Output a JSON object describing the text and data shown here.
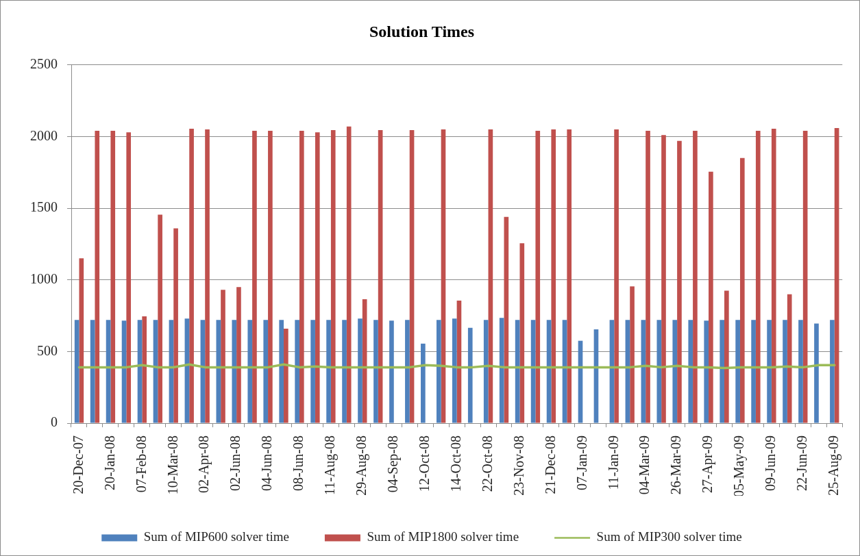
{
  "chart_data": {
    "type": "bar",
    "title": "Solution Times",
    "categories": [
      "20-Dec-07",
      null,
      "20-Jan-08",
      null,
      "07-Feb-08",
      null,
      "10-Mar-08",
      null,
      "02-Apr-08",
      null,
      "02-Jun-08",
      null,
      "04-Jun-08",
      null,
      "08-Jun-08",
      null,
      "11-Aug-08",
      null,
      "29-Aug-08",
      null,
      "04-Sep-08",
      null,
      "12-Oct-08",
      null,
      "14-Oct-08",
      null,
      "22-Oct-08",
      null,
      "23-Nov-08",
      null,
      "21-Dec-08",
      null,
      "07-Jan-09",
      null,
      "11-Jan-09",
      null,
      "04-Mar-09",
      null,
      "26-Mar-09",
      null,
      "27-Apr-09",
      null,
      "05-May-09",
      null,
      "09-Jun-09",
      null,
      "22-Jun-09",
      null,
      "25-Aug-09"
    ],
    "series": [
      {
        "name": "Sum of MIP600 solver time",
        "color": "#4f81bd",
        "values": [
          720,
          720,
          720,
          715,
          720,
          720,
          720,
          730,
          720,
          720,
          720,
          720,
          720,
          720,
          720,
          720,
          720,
          720,
          730,
          720,
          715,
          720,
          555,
          720,
          730,
          665,
          720,
          735,
          720,
          720,
          720,
          720,
          575,
          655,
          720,
          720,
          720,
          720,
          720,
          720,
          715,
          720,
          720,
          720,
          720,
          720,
          720,
          695,
          720
        ]
      },
      {
        "name": "Sum of MIP1800 solver time",
        "color": "#c0504d",
        "values": [
          1150,
          2040,
          2040,
          2030,
          745,
          1455,
          1360,
          2055,
          2050,
          930,
          950,
          2040,
          2040,
          660,
          2040,
          2030,
          2045,
          2070,
          865,
          2045,
          null,
          2045,
          null,
          2050,
          855,
          null,
          2050,
          1440,
          1255,
          2040,
          2050,
          2050,
          null,
          null,
          2050,
          955,
          2040,
          2010,
          1970,
          2040,
          1755,
          925,
          1850,
          2040,
          2055,
          900,
          2040,
          null,
          2060
        ]
      },
      {
        "name": "Sum of MIP300 solver time",
        "type": "line",
        "color": "#9bbb59",
        "values": [
          390,
          390,
          390,
          390,
          405,
          390,
          390,
          410,
          390,
          390,
          390,
          390,
          390,
          410,
          390,
          395,
          390,
          390,
          390,
          390,
          390,
          390,
          405,
          400,
          390,
          390,
          400,
          390,
          390,
          390,
          390,
          390,
          390,
          390,
          390,
          390,
          400,
          390,
          400,
          390,
          390,
          385,
          390,
          390,
          390,
          395,
          390,
          405,
          405
        ]
      }
    ],
    "ylim": [
      0,
      2500
    ],
    "yticks": [
      0,
      500,
      1000,
      1500,
      2000,
      2500
    ],
    "grid": "y",
    "legend": "bottom"
  }
}
